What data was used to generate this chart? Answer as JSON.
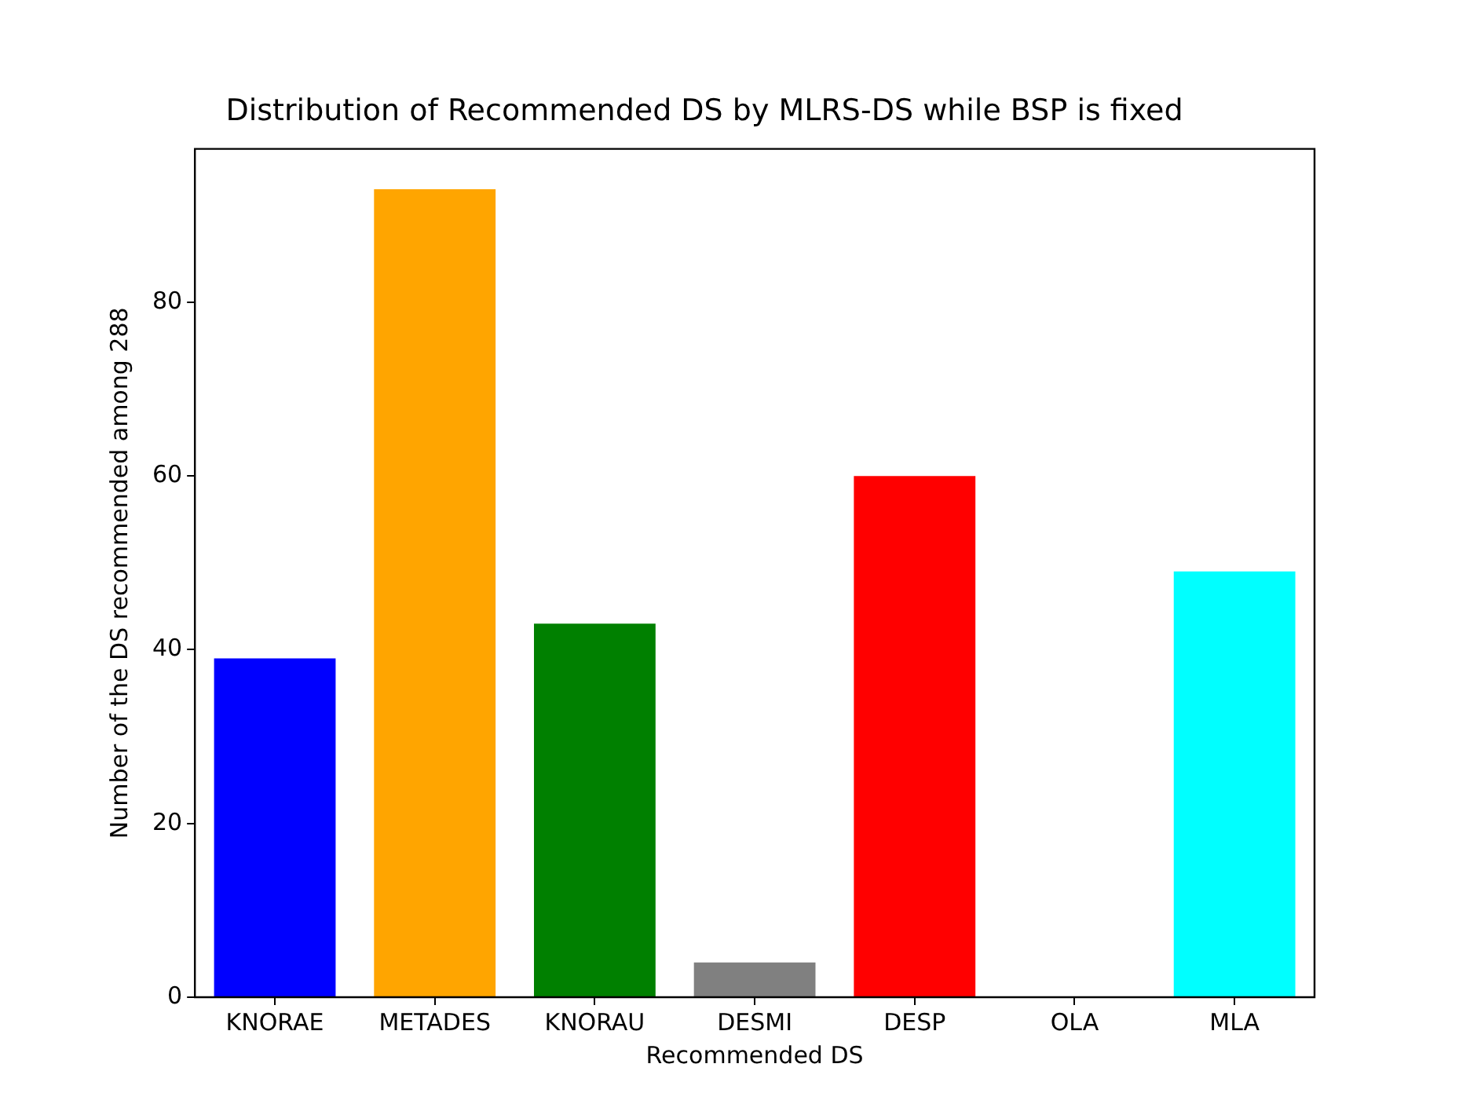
{
  "chart_data": {
    "type": "bar",
    "title": "Distribution of Recommended DS by MLRS-DS while BSP is fixed",
    "xlabel": "Recommended DS",
    "ylabel": "Number of the DS recommended among 288",
    "categories": [
      "KNORAE",
      "METADES",
      "KNORAU",
      "DESMI",
      "DESP",
      "OLA",
      "MLA"
    ],
    "values": [
      39,
      93,
      43,
      4,
      60,
      0,
      49
    ],
    "colors": [
      "#0000ff",
      "#ffa500",
      "#008000",
      "#808080",
      "#ff0000",
      "#bfbf00",
      "#00ffff"
    ],
    "ylim": [
      0,
      97.65
    ],
    "yticks": [
      0,
      20,
      40,
      60,
      80
    ],
    "grid": false,
    "legend": false
  }
}
